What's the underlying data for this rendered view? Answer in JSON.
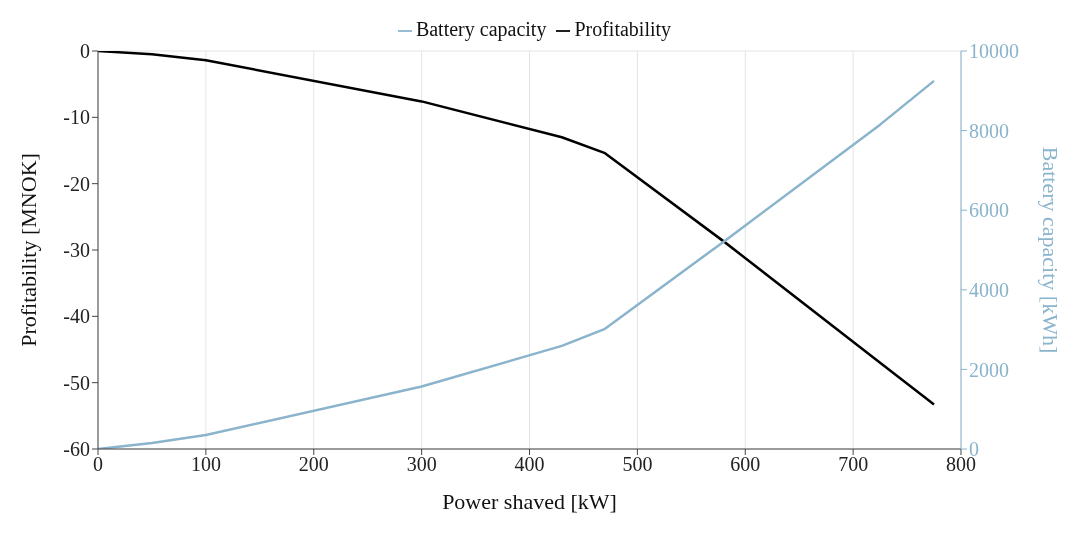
{
  "chart_data": {
    "type": "line",
    "xlabel": "Power shaved [kW]",
    "ylabel": "Profitability [MNOK]",
    "y2label": "Battery capacity [kWh]",
    "x": [
      0,
      50,
      100,
      300,
      430,
      470,
      580,
      725,
      775
    ],
    "series": [
      {
        "name": "Profitability",
        "color": "#000000",
        "values": [
          0,
          -0.5,
          -1.4,
          -7.6,
          -13,
          -15.4,
          -28.7,
          -47,
          -53.3
        ]
      },
      {
        "name": "Battery capacity",
        "color": "#8ab4cc",
        "axis": "y2",
        "values": [
          0,
          150,
          350,
          1570,
          2590,
          3020,
          5210,
          8150,
          9250
        ]
      }
    ],
    "xlim": [
      0,
      800
    ],
    "xticks": [
      0,
      100,
      200,
      300,
      400,
      500,
      600,
      700,
      800
    ],
    "ylim": [
      -60,
      0
    ],
    "yticks": [
      -60,
      -50,
      -40,
      -30,
      -20,
      -10,
      0
    ],
    "y2lim": [
      0,
      10000
    ],
    "y2ticks": [
      0,
      2000,
      4000,
      6000,
      8000,
      10000
    ],
    "grid": true,
    "legend": "top",
    "marker": "none",
    "line_style": "solid"
  }
}
